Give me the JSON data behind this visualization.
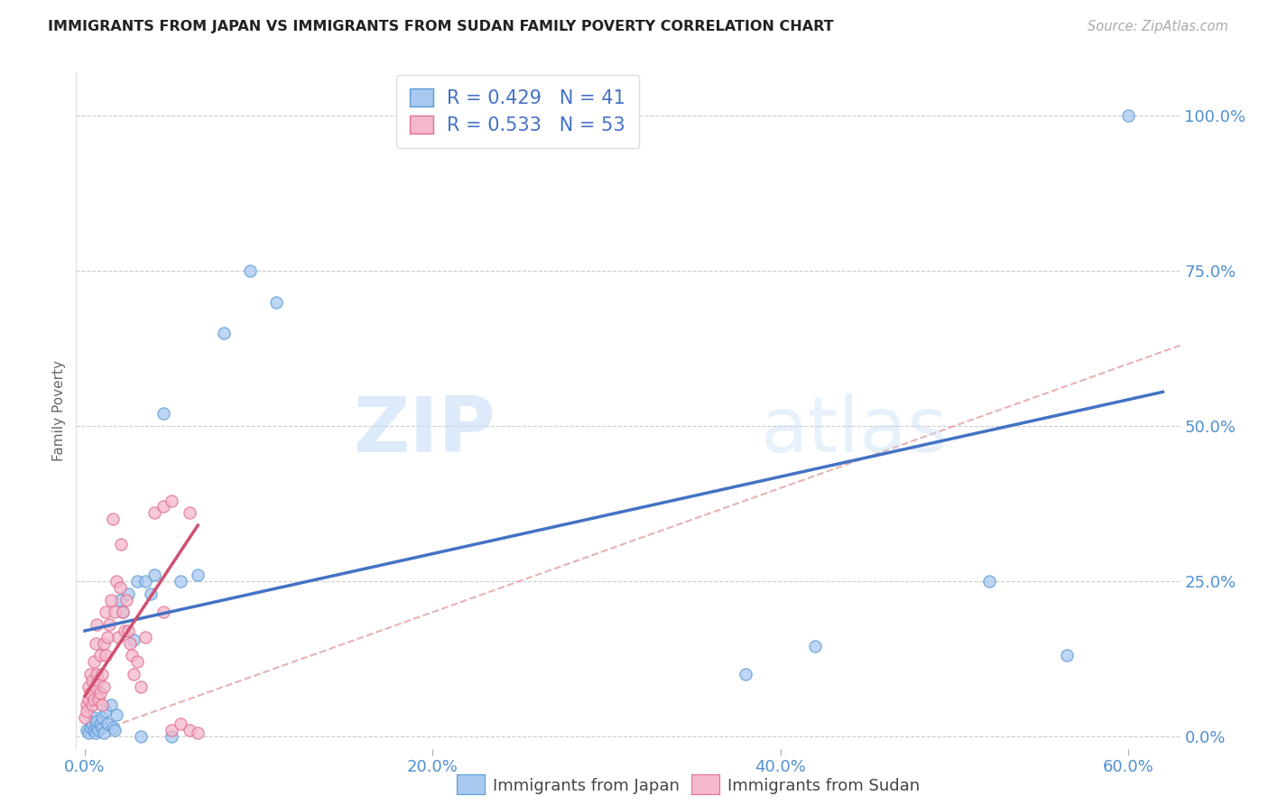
{
  "title": "IMMIGRANTS FROM JAPAN VS IMMIGRANTS FROM SUDAN FAMILY POVERTY CORRELATION CHART",
  "source": "Source: ZipAtlas.com",
  "xlabel_ticks": [
    "0.0%",
    "20.0%",
    "40.0%",
    "60.0%"
  ],
  "xlabel_tick_vals": [
    0.0,
    0.2,
    0.4,
    0.6
  ],
  "ylabel_ticks": [
    "0.0%",
    "25.0%",
    "50.0%",
    "75.0%",
    "100.0%"
  ],
  "ylabel_tick_vals": [
    0.0,
    0.25,
    0.5,
    0.75,
    1.0
  ],
  "ylabel": "Family Poverty",
  "xlim": [
    -0.005,
    0.63
  ],
  "ylim": [
    -0.02,
    1.07
  ],
  "japan_color": "#a8c8f0",
  "japan_edge_color": "#5b9bd5",
  "sudan_color": "#f5b8cb",
  "sudan_edge_color": "#e07090",
  "japan_line_color": "#4472c4",
  "sudan_line_color": "#d05070",
  "diag_line_color": "#e0a0a0",
  "R_japan": 0.429,
  "N_japan": 41,
  "R_sudan": 0.533,
  "N_sudan": 53,
  "japan_x": [
    0.001,
    0.002,
    0.003,
    0.004,
    0.005,
    0.005,
    0.006,
    0.007,
    0.007,
    0.008,
    0.009,
    0.01,
    0.01,
    0.011,
    0.012,
    0.013,
    0.015,
    0.016,
    0.017,
    0.018,
    0.02,
    0.022,
    0.025,
    0.028,
    0.03,
    0.032,
    0.035,
    0.038,
    0.04,
    0.045,
    0.05,
    0.055,
    0.065,
    0.08,
    0.095,
    0.11,
    0.38,
    0.42,
    0.52,
    0.565,
    0.6
  ],
  "japan_y": [
    0.01,
    0.005,
    0.015,
    0.02,
    0.01,
    0.03,
    0.005,
    0.015,
    0.025,
    0.01,
    0.02,
    0.015,
    0.03,
    0.005,
    0.04,
    0.02,
    0.05,
    0.015,
    0.01,
    0.035,
    0.22,
    0.2,
    0.23,
    0.155,
    0.25,
    0.0,
    0.25,
    0.23,
    0.26,
    0.52,
    0.0,
    0.25,
    0.26,
    0.65,
    0.75,
    0.7,
    0.1,
    0.145,
    0.25,
    0.13,
    1.0
  ],
  "sudan_x": [
    0.0,
    0.001,
    0.001,
    0.002,
    0.002,
    0.003,
    0.003,
    0.004,
    0.004,
    0.005,
    0.005,
    0.006,
    0.006,
    0.007,
    0.007,
    0.008,
    0.008,
    0.009,
    0.009,
    0.01,
    0.01,
    0.011,
    0.011,
    0.012,
    0.012,
    0.013,
    0.014,
    0.015,
    0.016,
    0.017,
    0.018,
    0.019,
    0.02,
    0.021,
    0.022,
    0.023,
    0.024,
    0.025,
    0.026,
    0.027,
    0.028,
    0.03,
    0.032,
    0.035,
    0.04,
    0.045,
    0.05,
    0.055,
    0.06,
    0.065,
    0.045,
    0.05,
    0.06
  ],
  "sudan_y": [
    0.03,
    0.05,
    0.04,
    0.08,
    0.06,
    0.1,
    0.07,
    0.05,
    0.09,
    0.06,
    0.12,
    0.08,
    0.15,
    0.1,
    0.18,
    0.09,
    0.06,
    0.13,
    0.07,
    0.05,
    0.1,
    0.08,
    0.15,
    0.2,
    0.13,
    0.16,
    0.18,
    0.22,
    0.35,
    0.2,
    0.25,
    0.16,
    0.24,
    0.31,
    0.2,
    0.17,
    0.22,
    0.17,
    0.15,
    0.13,
    0.1,
    0.12,
    0.08,
    0.16,
    0.36,
    0.2,
    0.01,
    0.02,
    0.01,
    0.005,
    0.37,
    0.38,
    0.36
  ],
  "watermark_zip": "ZIP",
  "watermark_atlas": "atlas",
  "marker_size": 90
}
